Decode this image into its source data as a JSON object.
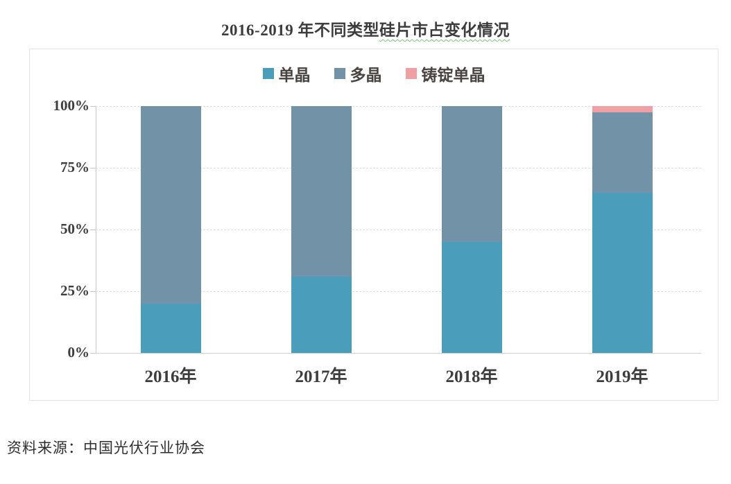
{
  "title": {
    "part1": "2016-2019 年不同类型",
    "part2_underlined": "硅片市占变化情况",
    "full": "2016-2019 年不同类型硅片市占变化情况"
  },
  "source_text": "资料来源：中国光伏行业协会",
  "colors": {
    "mono": "#4A9EBC",
    "multi": "#7192A7",
    "cast_mono": "#F0A0A4",
    "grid": "#DEDEDE",
    "axis": "#C9C9C9",
    "border": "#E4E4E4",
    "text": "#3D3D3D"
  },
  "chart_data": {
    "type": "bar",
    "stacked": true,
    "title": "2016-2019 年不同类型硅片市占变化情况",
    "categories": [
      "2016年",
      "2017年",
      "2018年",
      "2019年"
    ],
    "series": [
      {
        "name": "单晶",
        "color": "#4A9EBC",
        "values": [
          20,
          31,
          45,
          65
        ]
      },
      {
        "name": "多晶",
        "color": "#7192A7",
        "values": [
          80,
          69,
          55,
          32.5
        ]
      },
      {
        "name": "铸锭单晶",
        "color": "#F0A0A4",
        "values": [
          0,
          0,
          0,
          2.5
        ]
      }
    ],
    "xlabel": "",
    "ylabel": "",
    "ylim": [
      0,
      100
    ],
    "yticks": [
      {
        "label": "0%",
        "pct": 0
      },
      {
        "label": "25%",
        "pct": 25
      },
      {
        "label": "50%",
        "pct": 50
      },
      {
        "label": "75%",
        "pct": 75
      },
      {
        "label": "100%",
        "pct": 100
      }
    ],
    "grid": "horizontal-dashed",
    "legend_position": "top-center"
  }
}
